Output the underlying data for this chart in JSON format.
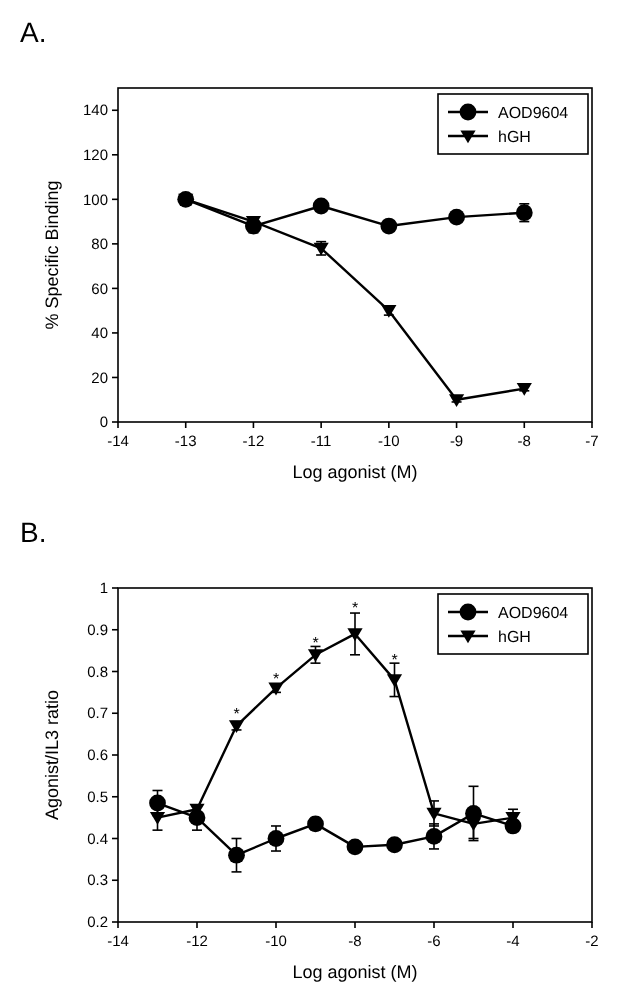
{
  "chart_data": [
    {
      "type": "line",
      "title": "A.",
      "xlabel": "Log agonist (M)",
      "ylabel": "% Specific Binding",
      "x": [
        -13,
        -12,
        -11,
        -10,
        -9,
        -8
      ],
      "series": [
        {
          "name": "AOD9604",
          "color": "#000000",
          "marker": "circle",
          "values": [
            100,
            88,
            97,
            88,
            92,
            94
          ],
          "errors": [
            2,
            3,
            1,
            1,
            2,
            4
          ]
        },
        {
          "name": "hGH",
          "color": "#000000",
          "marker": "triangle",
          "values": [
            100,
            90,
            78,
            50,
            10,
            15
          ],
          "errors": [
            null,
            null,
            3,
            2,
            1,
            1
          ]
        }
      ],
      "xlim": [
        -14,
        -7
      ],
      "xticks": [
        -14,
        -13,
        -12,
        -11,
        -10,
        -9,
        -8,
        -7
      ],
      "ylim": [
        0,
        150
      ],
      "yticks": [
        0,
        20,
        40,
        60,
        80,
        100,
        120,
        140
      ],
      "legend": "top right",
      "grid": false
    },
    {
      "type": "line",
      "title": "B.",
      "xlabel": "Log agonist (M)",
      "ylabel": "Agonist/IL3 ratio",
      "x": [
        -13,
        -12,
        -11,
        -10,
        -9,
        -8,
        -7,
        -6,
        -5,
        -4
      ],
      "series": [
        {
          "name": "AOD9604",
          "color": "#000000",
          "marker": "circle",
          "values": [
            0.485,
            0.45,
            0.36,
            0.4,
            0.435,
            0.38,
            0.385,
            0.405,
            0.46,
            0.43
          ],
          "errors": [
            0.03,
            0.03,
            0.04,
            0.03,
            0.015,
            0.005,
            0.005,
            0.03,
            0.065,
            0.01
          ]
        },
        {
          "name": "hGH",
          "color": "#000000",
          "marker": "triangle",
          "values": [
            0.45,
            0.47,
            0.67,
            0.76,
            0.84,
            0.89,
            0.78,
            0.46,
            0.435,
            0.45
          ],
          "errors": [
            0.03,
            0.01,
            0.01,
            0.01,
            0.02,
            0.05,
            0.04,
            0.03,
            0.035,
            0.02
          ]
        }
      ],
      "xlim": [
        -14,
        -2
      ],
      "xticks": [
        -14,
        -12,
        -10,
        -8,
        -6,
        -4,
        -2
      ],
      "ylim": [
        0.2,
        1.0
      ],
      "yticks": [
        0.2,
        0.3,
        0.4,
        0.5,
        0.6,
        0.7,
        0.8,
        0.9,
        1.0
      ],
      "legend": "top right",
      "grid": false,
      "annotations": [
        {
          "text": "*",
          "x": -11,
          "y": 0.7
        },
        {
          "text": "*",
          "x": -10,
          "y": 0.785
        },
        {
          "text": "*",
          "x": -9,
          "y": 0.87
        },
        {
          "text": "*",
          "x": -8,
          "y": 0.955
        },
        {
          "text": "*",
          "x": -7,
          "y": 0.83
        }
      ]
    }
  ]
}
